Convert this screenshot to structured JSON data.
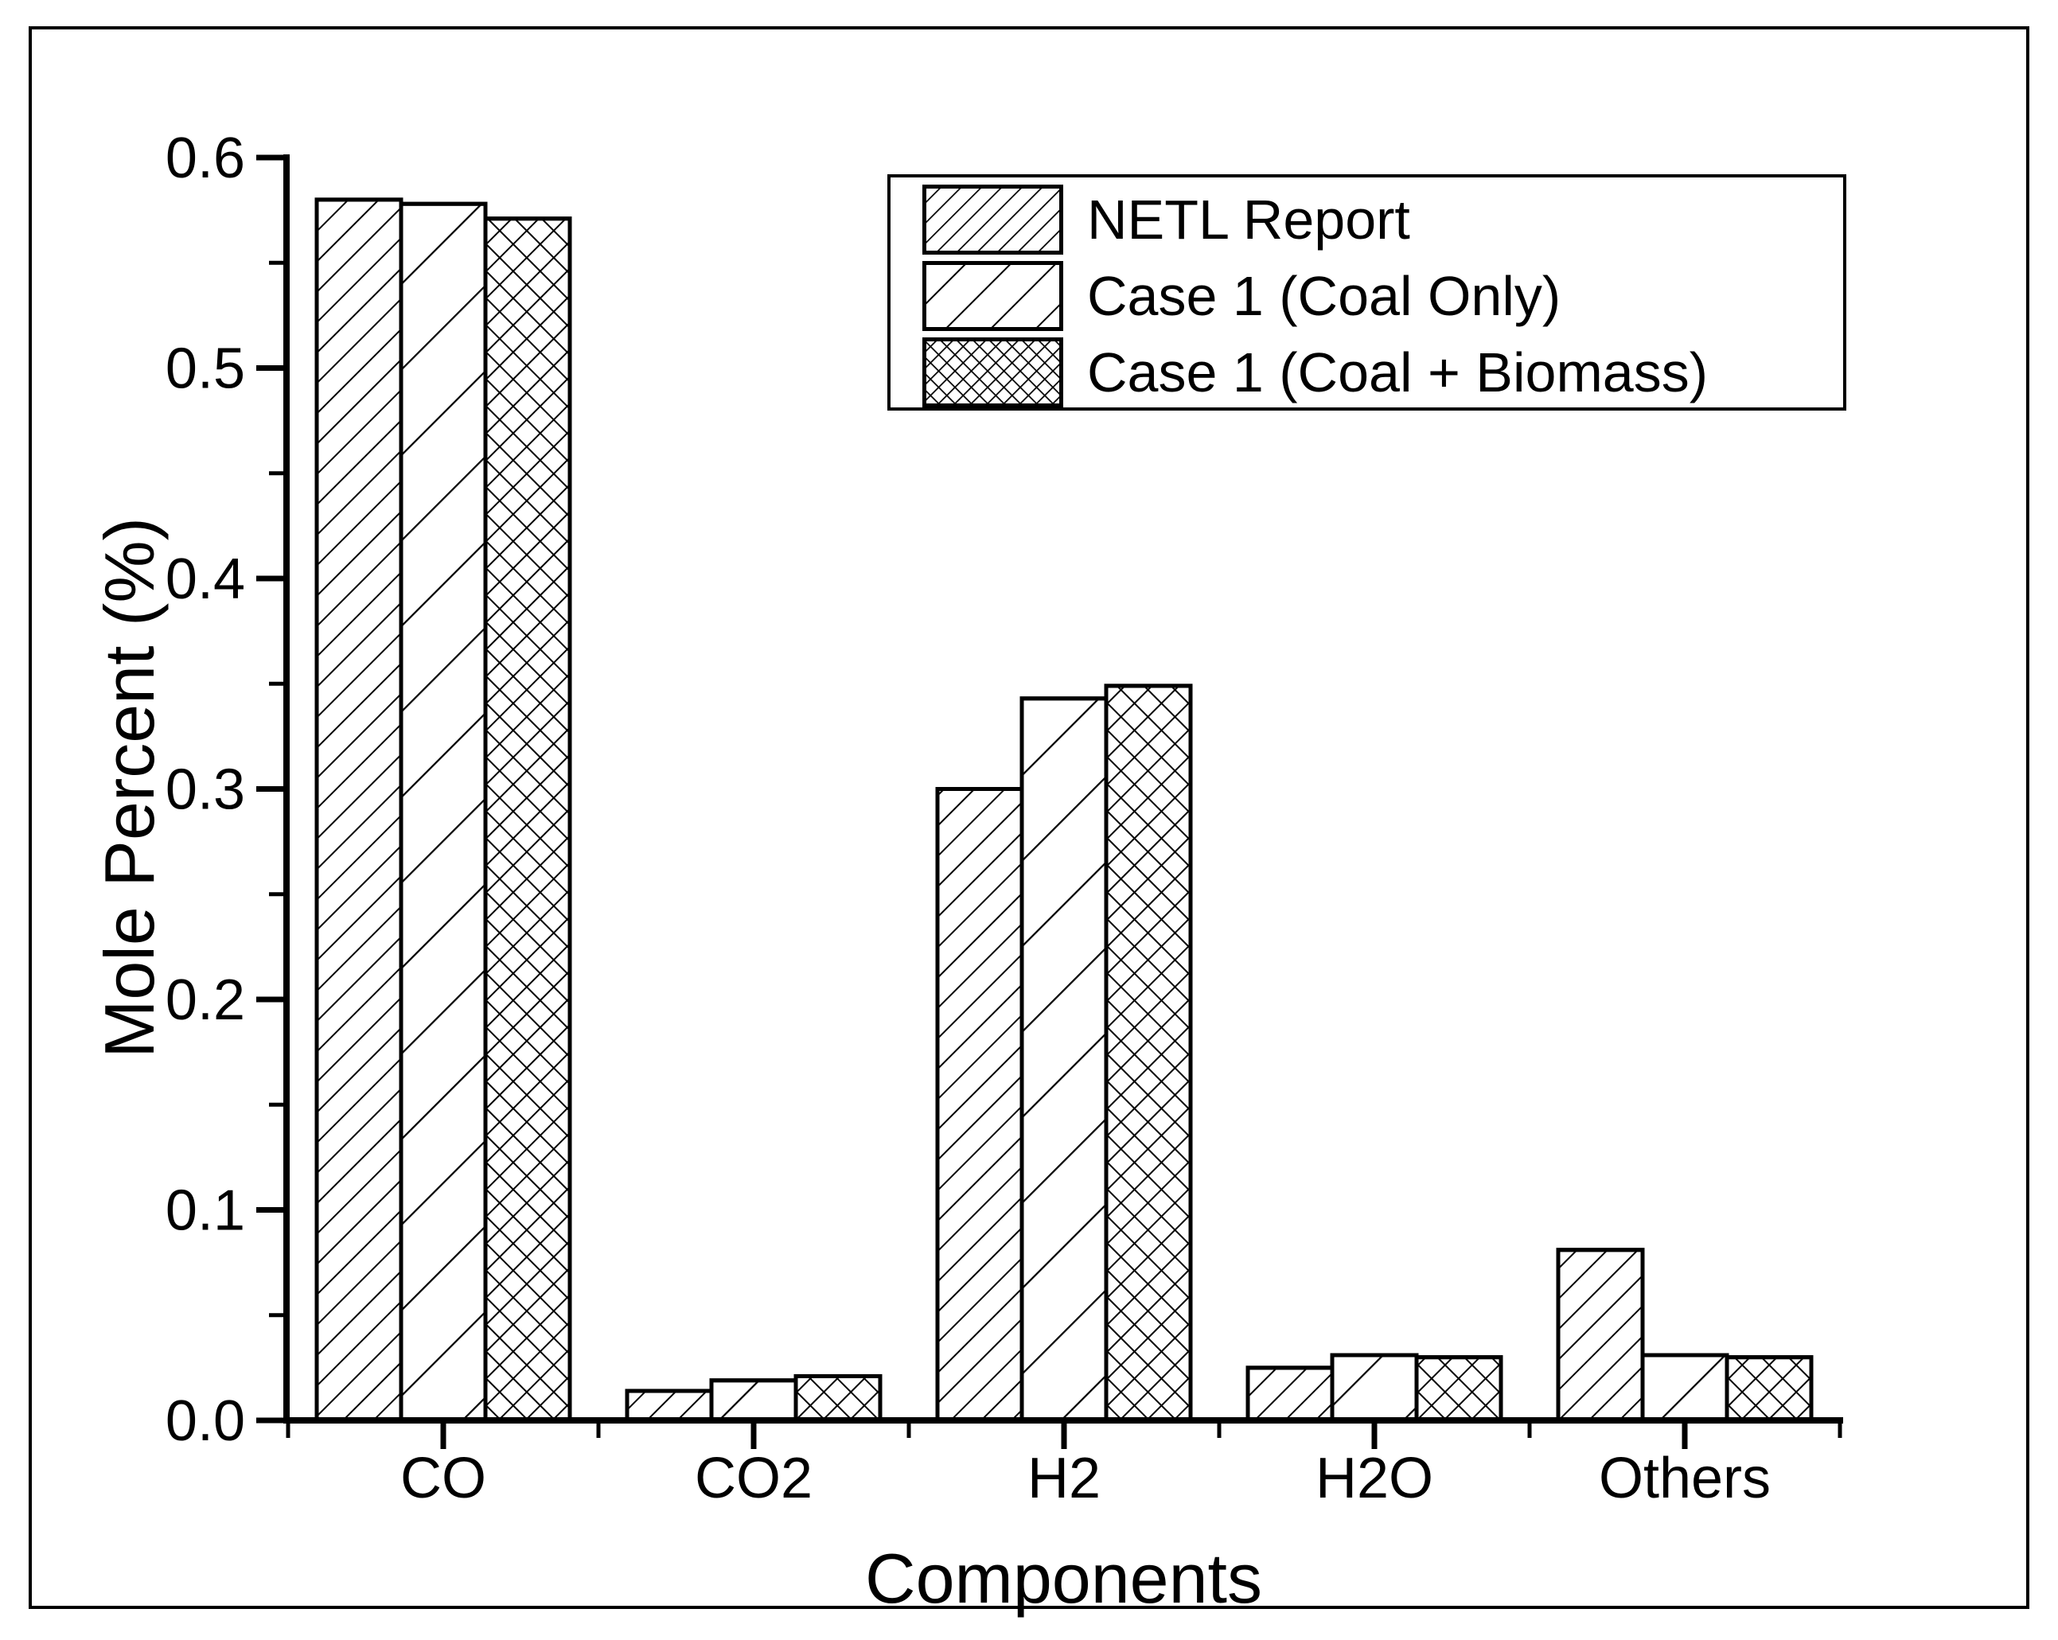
{
  "chart_data": {
    "type": "bar",
    "title": "",
    "xlabel": "Components",
    "ylabel": "Mole Percent (%)",
    "categories": [
      "CO",
      "CO2",
      "H2",
      "H2O",
      "Others"
    ],
    "series": [
      {
        "name": "NETL Report",
        "hatch": "dense-diagonal",
        "values": [
          0.58,
          0.014,
          0.3,
          0.025,
          0.081
        ]
      },
      {
        "name": "Case 1 (Coal Only)",
        "hatch": "sparse-diagonal",
        "values": [
          0.578,
          0.019,
          0.343,
          0.031,
          0.031
        ]
      },
      {
        "name": "Case 1 (Coal + Biomass)",
        "hatch": "crosshatch",
        "values": [
          0.571,
          0.021,
          0.349,
          0.03,
          0.03
        ]
      }
    ],
    "ylim": [
      0.0,
      0.6
    ],
    "ytick_step": 0.1,
    "yminor_step": 0.05,
    "ytick_labels": [
      "0.0",
      "0.1",
      "0.2",
      "0.3",
      "0.4",
      "0.5",
      "0.6"
    ],
    "legend_position": "top-right",
    "grid": false,
    "colors": {
      "foreground": "#000000",
      "background": "#ffffff",
      "bar_fill": "#ffffff"
    }
  }
}
